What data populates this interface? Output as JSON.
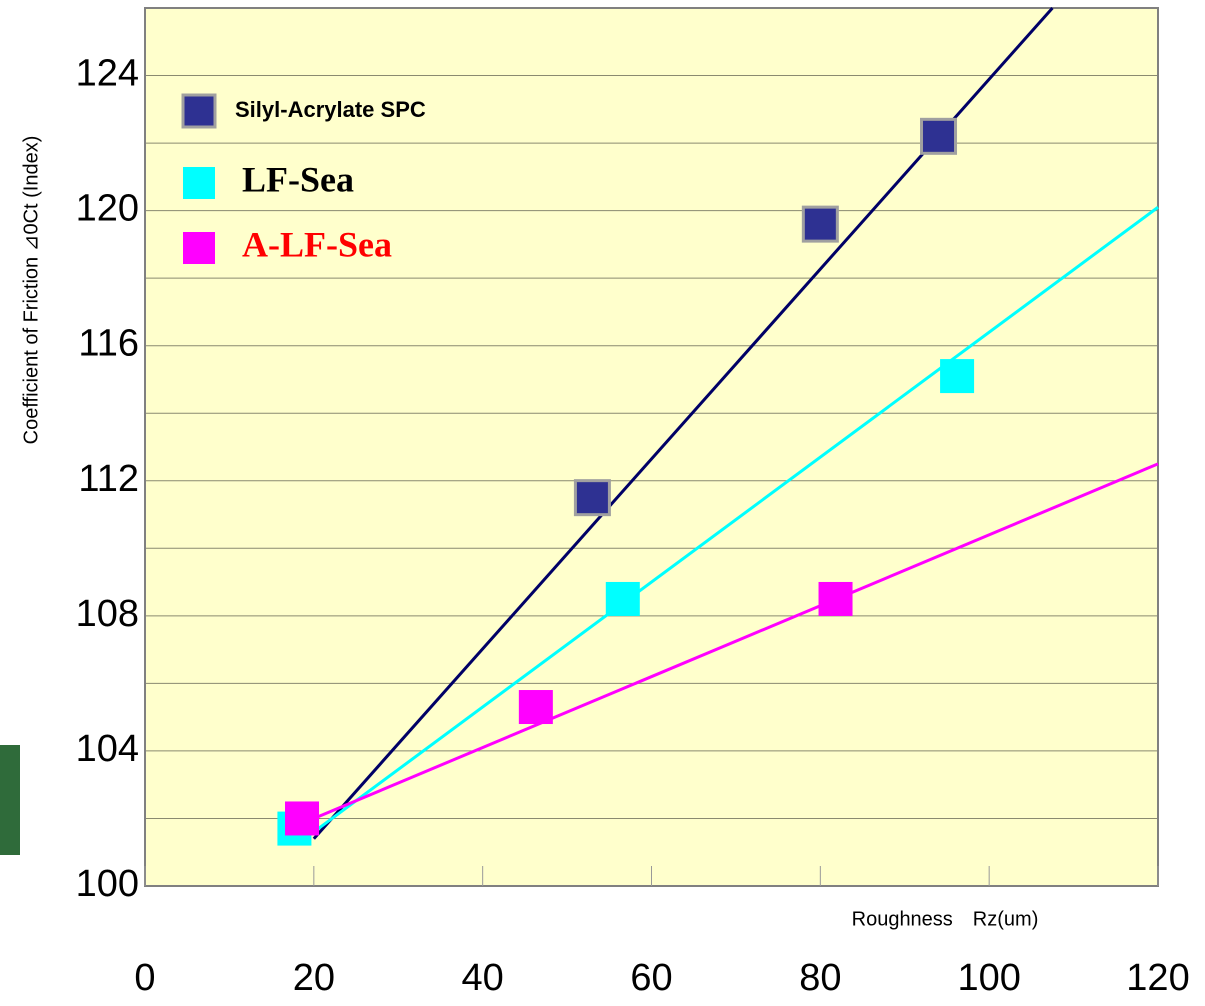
{
  "chart_data": {
    "type": "scatter",
    "x_label": "Roughness　Rz(um)",
    "y_label": "Coefficient of Friction ⊿0Ct (Index)",
    "xlim": [
      0,
      120
    ],
    "xticks": [
      0,
      20,
      40,
      60,
      80,
      100,
      120
    ],
    "ylim": [
      100,
      126
    ],
    "yticks": [
      100,
      104,
      108,
      112,
      116,
      120,
      124
    ],
    "grid": true,
    "legend": "upper left",
    "series": [
      {
        "name": "Silyl-Acrylate SPC",
        "color": "#2e3192",
        "x": [
          53,
          80,
          94
        ],
        "values": [
          111.5,
          119.6,
          122.2
        ],
        "line": {
          "x": [
            20,
            107.5
          ],
          "values": [
            101.4,
            126
          ]
        }
      },
      {
        "name": "LF-Sea",
        "color": "#00ffff",
        "x": [
          17.7,
          56.6,
          96.2
        ],
        "values": [
          101.7,
          108.5,
          115.1
        ],
        "line": {
          "x": [
            20,
            120
          ],
          "values": [
            101.6,
            120.1
          ]
        }
      },
      {
        "name": "A-LF-Sea",
        "color": "#ff00ff",
        "x": [
          18.6,
          46.3,
          81.8
        ],
        "values": [
          102.0,
          105.3,
          108.5
        ],
        "line": {
          "x": [
            20,
            120
          ],
          "values": [
            102.0,
            112.5
          ]
        }
      }
    ]
  }
}
